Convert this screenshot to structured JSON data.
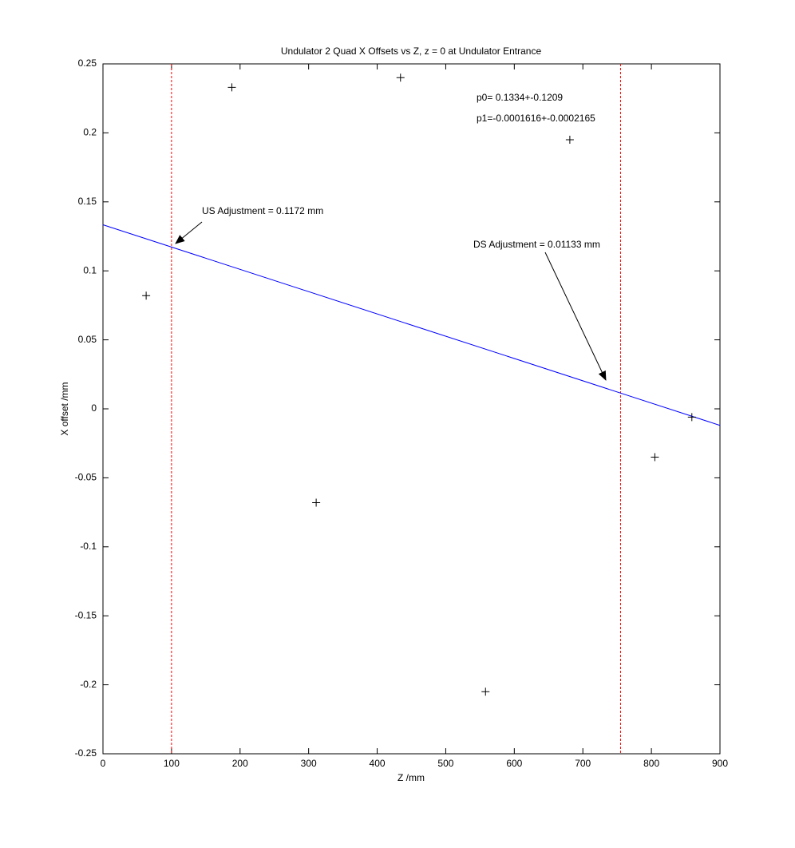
{
  "chart_data": {
    "type": "scatter",
    "title": "Undulator 2 Quad X Offsets vs Z, z = 0 at Undulator Entrance",
    "xlabel": "Z /mm",
    "ylabel": "X offset /mm",
    "x": [
      63,
      188,
      311,
      434,
      558,
      681,
      805,
      859
    ],
    "values": [
      0.082,
      0.233,
      -0.068,
      0.24,
      -0.205,
      0.195,
      -0.035,
      -0.006
    ],
    "color": "#000000",
    "fit": {
      "x": [
        0,
        900
      ],
      "values": [
        0.1334,
        -0.012
      ],
      "color": "#0000ff"
    },
    "vlines": {
      "x": [
        100,
        755
      ],
      "color": "#ff0000"
    },
    "annotations": [
      "p0= 0.1334+-0.1209",
      "p1=-0.0001616+-0.0002165",
      "US Adjustment = 0.1172 mm",
      "DS Adjustment = 0.01133 mm"
    ],
    "xlim": [
      0,
      900
    ],
    "xticks": [
      0,
      100,
      200,
      300,
      400,
      500,
      600,
      700,
      800,
      900
    ],
    "ylim": [
      -0.25,
      0.25
    ],
    "yticks": [
      -0.25,
      -0.2,
      -0.15,
      -0.1,
      -0.05,
      0,
      0.05,
      0.1,
      0.15,
      0.2,
      0.25
    ],
    "grid": false
  }
}
